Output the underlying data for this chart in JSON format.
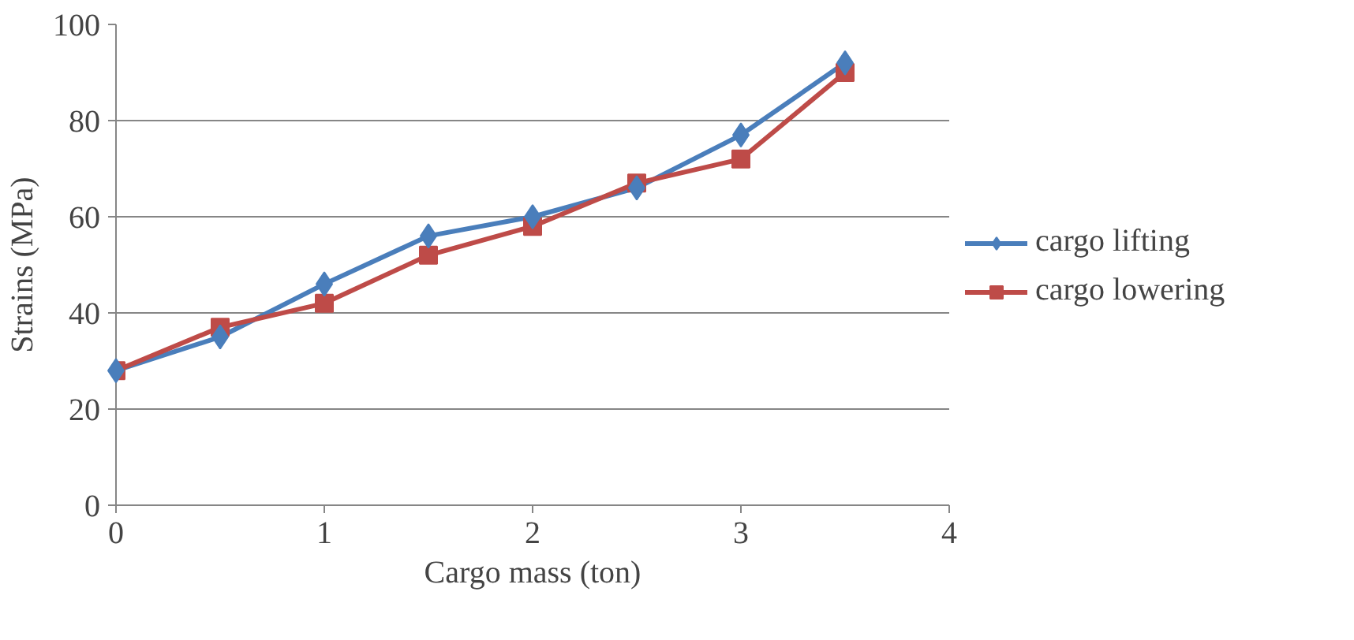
{
  "chart_data": {
    "type": "line",
    "xlabel": "Cargo mass (ton)",
    "ylabel": "Strains (MPa)",
    "x": [
      0,
      0.5,
      1,
      1.5,
      2,
      2.5,
      3,
      3.5
    ],
    "series": [
      {
        "name": "cargo lifting",
        "color": "#4a7ebb",
        "marker": "diamond",
        "values": [
          28,
          35,
          46,
          56,
          60,
          66,
          77,
          92
        ]
      },
      {
        "name": "cargo lowering",
        "color": "#be4b48",
        "marker": "square",
        "values": [
          28,
          37,
          42,
          52,
          58,
          67,
          72,
          90
        ]
      }
    ],
    "xlim": [
      0,
      4
    ],
    "xticks": [
      0,
      1,
      2,
      3,
      4
    ],
    "ylim": [
      0,
      100
    ],
    "yticks": [
      0,
      20,
      40,
      60,
      80,
      100
    ],
    "grid": "y",
    "legend": "right"
  }
}
